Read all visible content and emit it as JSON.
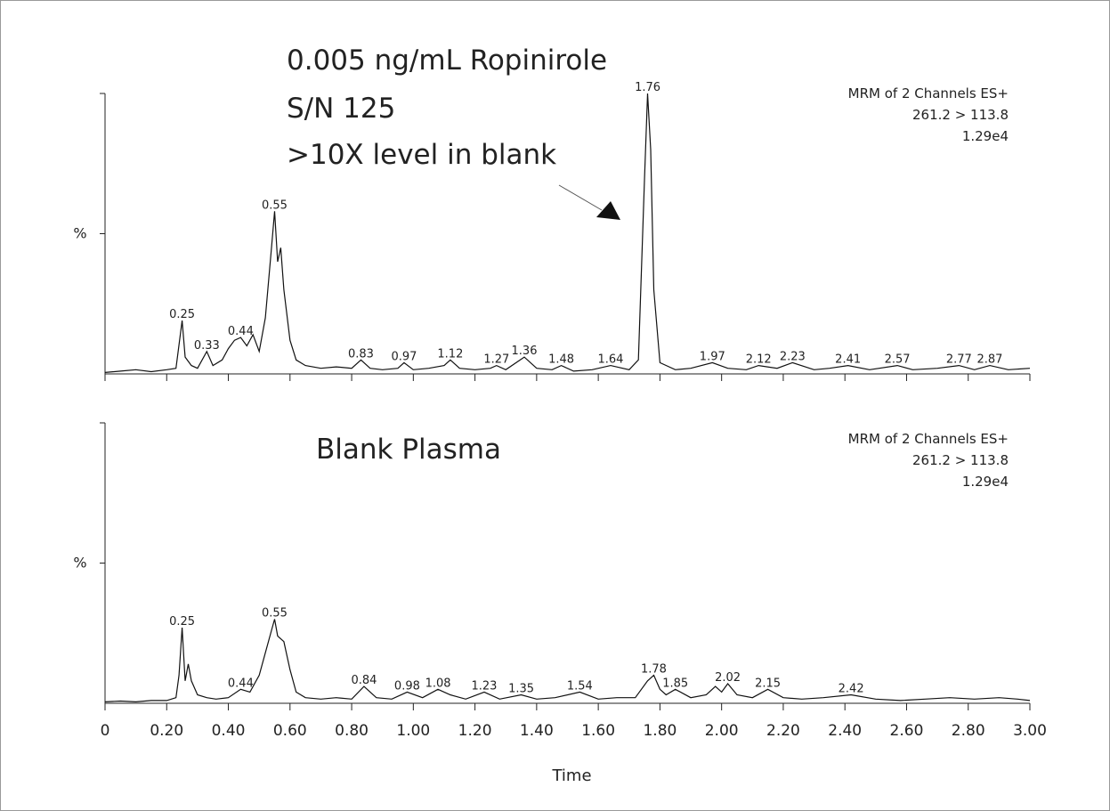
{
  "chart_data": [
    {
      "type": "line",
      "annotations": [
        "0.005 ng/mL Ropinirole",
        "S/N 125",
        ">10X level in blank"
      ],
      "info": [
        "MRM of 2 Channels ES+",
        "261.2 > 113.8",
        "1.29e4"
      ],
      "xlim": [
        0,
        3
      ],
      "ylim": [
        0,
        100
      ],
      "xticks": [
        0,
        0.2,
        0.4,
        0.6,
        0.8,
        1,
        1.2,
        1.4,
        1.6,
        1.8,
        2,
        2.2,
        2.4,
        2.6,
        2.8,
        3
      ],
      "xtick_labels": false,
      "yticks": [
        {
          "value": 50,
          "label": "%"
        }
      ],
      "color": "#111111",
      "x": [
        0,
        0.05,
        0.1,
        0.15,
        0.2,
        0.23,
        0.25,
        0.26,
        0.28,
        0.3,
        0.33,
        0.35,
        0.38,
        0.4,
        0.42,
        0.44,
        0.46,
        0.48,
        0.5,
        0.52,
        0.54,
        0.55,
        0.56,
        0.57,
        0.58,
        0.6,
        0.62,
        0.65,
        0.7,
        0.75,
        0.8,
        0.83,
        0.86,
        0.9,
        0.95,
        0.97,
        1,
        1.05,
        1.1,
        1.12,
        1.15,
        1.2,
        1.25,
        1.27,
        1.3,
        1.36,
        1.4,
        1.45,
        1.48,
        1.52,
        1.58,
        1.64,
        1.7,
        1.73,
        1.75,
        1.76,
        1.77,
        1.78,
        1.8,
        1.85,
        1.9,
        1.97,
        2.02,
        2.08,
        2.12,
        2.18,
        2.23,
        2.3,
        2.35,
        2.41,
        2.48,
        2.57,
        2.62,
        2.7,
        2.77,
        2.82,
        2.87,
        2.93,
        3
      ],
      "values": [
        0.5,
        1,
        1.5,
        0.8,
        1.5,
        2,
        19,
        6,
        3,
        2,
        8,
        3,
        5,
        9,
        12,
        13,
        10,
        14,
        8,
        20,
        45,
        58,
        40,
        45,
        30,
        12,
        5,
        3,
        2,
        2.5,
        2,
        5,
        2,
        1.5,
        2,
        4,
        1.5,
        2,
        3,
        5,
        2,
        1.5,
        2,
        3,
        1.5,
        6,
        2,
        1.5,
        3,
        1,
        1.5,
        3,
        1.5,
        5,
        70,
        100,
        80,
        30,
        4,
        1.5,
        2,
        4,
        2,
        1.5,
        3,
        2,
        4,
        1.5,
        2,
        3,
        1.5,
        3,
        1.5,
        2,
        3,
        1.5,
        3,
        1.5,
        2
      ],
      "peaks": [
        {
          "x": 0.25,
          "y": 19
        },
        {
          "x": 0.33,
          "y": 8
        },
        {
          "x": 0.44,
          "y": 13
        },
        {
          "x": 0.55,
          "y": 58
        },
        {
          "x": 0.83,
          "y": 5
        },
        {
          "x": 0.97,
          "y": 4
        },
        {
          "x": 1.12,
          "y": 5
        },
        {
          "x": 1.27,
          "y": 3
        },
        {
          "x": 1.36,
          "y": 6
        },
        {
          "x": 1.48,
          "y": 3
        },
        {
          "x": 1.64,
          "y": 3
        },
        {
          "x": 1.76,
          "y": 100
        },
        {
          "x": 1.97,
          "y": 4
        },
        {
          "x": 2.12,
          "y": 3
        },
        {
          "x": 2.23,
          "y": 4
        },
        {
          "x": 2.41,
          "y": 3
        },
        {
          "x": 2.57,
          "y": 3
        },
        {
          "x": 2.77,
          "y": 3
        },
        {
          "x": 2.87,
          "y": 3
        }
      ]
    },
    {
      "type": "line",
      "annotations": [
        "Blank Plasma"
      ],
      "info": [
        "MRM of 2 Channels ES+",
        "261.2 > 113.8",
        "1.29e4"
      ],
      "xlabel": "Time",
      "xlim": [
        0,
        3
      ],
      "ylim": [
        0,
        100
      ],
      "xticks": [
        0,
        {
          "value": 0.2,
          "label": "0.20"
        },
        {
          "value": 0.4,
          "label": "0.40"
        },
        {
          "value": 0.6,
          "label": "0.60"
        },
        {
          "value": 0.8,
          "label": "0.80"
        },
        {
          "value": 1,
          "label": "1.00"
        },
        {
          "value": 1.2,
          "label": "1.20"
        },
        {
          "value": 1.4,
          "label": "1.40"
        },
        {
          "value": 1.6,
          "label": "1.60"
        },
        {
          "value": 1.8,
          "label": "1.80"
        },
        {
          "value": 2,
          "label": "2.00"
        },
        {
          "value": 2.2,
          "label": "2.20"
        },
        {
          "value": 2.4,
          "label": "2.40"
        },
        {
          "value": 2.6,
          "label": "2.60"
        },
        {
          "value": 2.8,
          "label": "2.80"
        },
        {
          "value": 3,
          "label": "3.00"
        }
      ],
      "xtick_labels": true,
      "yticks": [
        {
          "value": 50,
          "label": "%"
        }
      ],
      "color": "#111111",
      "x": [
        0,
        0.05,
        0.1,
        0.15,
        0.2,
        0.23,
        0.24,
        0.25,
        0.26,
        0.27,
        0.28,
        0.3,
        0.33,
        0.36,
        0.4,
        0.44,
        0.47,
        0.5,
        0.52,
        0.54,
        0.55,
        0.56,
        0.58,
        0.6,
        0.62,
        0.65,
        0.7,
        0.75,
        0.8,
        0.84,
        0.88,
        0.93,
        0.98,
        1.03,
        1.08,
        1.12,
        1.17,
        1.23,
        1.28,
        1.35,
        1.4,
        1.46,
        1.54,
        1.6,
        1.66,
        1.72,
        1.76,
        1.78,
        1.8,
        1.82,
        1.85,
        1.9,
        1.95,
        1.98,
        2,
        2.02,
        2.05,
        2.1,
        2.15,
        2.2,
        2.26,
        2.33,
        2.42,
        2.5,
        2.58,
        2.66,
        2.74,
        2.82,
        2.9,
        2.96,
        3
      ],
      "values": [
        0.5,
        0.8,
        0.5,
        1,
        1,
        2,
        10,
        27,
        8,
        14,
        8,
        3,
        2,
        1.5,
        2,
        5,
        4,
        10,
        18,
        26,
        30,
        24,
        22,
        12,
        4,
        2,
        1.5,
        2,
        1.5,
        6,
        2,
        1.5,
        4,
        2,
        5,
        3,
        1.5,
        4,
        1.5,
        3,
        1.5,
        2,
        4,
        1.5,
        2,
        2,
        8,
        10,
        5,
        3,
        5,
        2,
        3,
        6,
        4,
        7,
        3,
        2,
        5,
        2,
        1.5,
        2,
        3,
        1.5,
        1,
        1.5,
        2,
        1.5,
        2,
        1.5,
        1
      ],
      "peaks": [
        {
          "x": 0.25,
          "y": 27
        },
        {
          "x": 0.44,
          "y": 5
        },
        {
          "x": 0.55,
          "y": 30
        },
        {
          "x": 0.84,
          "y": 6
        },
        {
          "x": 0.98,
          "y": 4
        },
        {
          "x": 1.08,
          "y": 5
        },
        {
          "x": 1.23,
          "y": 4
        },
        {
          "x": 1.35,
          "y": 3
        },
        {
          "x": 1.54,
          "y": 4
        },
        {
          "x": 1.78,
          "y": 10
        },
        {
          "x": 1.85,
          "y": 5
        },
        {
          "x": 2.02,
          "y": 7
        },
        {
          "x": 2.15,
          "y": 5
        },
        {
          "x": 2.42,
          "y": 3
        }
      ]
    }
  ]
}
